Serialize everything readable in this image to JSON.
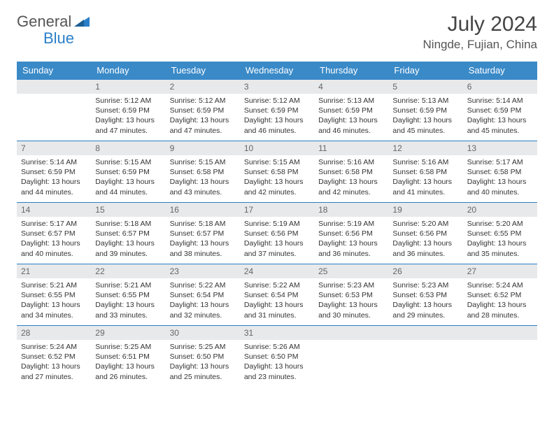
{
  "logo": {
    "text1": "General",
    "text2": "Blue"
  },
  "title": "July 2024",
  "location": "Ningde, Fujian, China",
  "colors": {
    "header_bg": "#3a8ac8",
    "border": "#2a7fc9",
    "daynum_bg": "#e8e9ea"
  },
  "dayNames": [
    "Sunday",
    "Monday",
    "Tuesday",
    "Wednesday",
    "Thursday",
    "Friday",
    "Saturday"
  ],
  "weeks": [
    [
      {
        "n": "",
        "sr": "",
        "ss": "",
        "dl": ""
      },
      {
        "n": "1",
        "sr": "Sunrise: 5:12 AM",
        "ss": "Sunset: 6:59 PM",
        "dl": "Daylight: 13 hours and 47 minutes."
      },
      {
        "n": "2",
        "sr": "Sunrise: 5:12 AM",
        "ss": "Sunset: 6:59 PM",
        "dl": "Daylight: 13 hours and 47 minutes."
      },
      {
        "n": "3",
        "sr": "Sunrise: 5:12 AM",
        "ss": "Sunset: 6:59 PM",
        "dl": "Daylight: 13 hours and 46 minutes."
      },
      {
        "n": "4",
        "sr": "Sunrise: 5:13 AM",
        "ss": "Sunset: 6:59 PM",
        "dl": "Daylight: 13 hours and 46 minutes."
      },
      {
        "n": "5",
        "sr": "Sunrise: 5:13 AM",
        "ss": "Sunset: 6:59 PM",
        "dl": "Daylight: 13 hours and 45 minutes."
      },
      {
        "n": "6",
        "sr": "Sunrise: 5:14 AM",
        "ss": "Sunset: 6:59 PM",
        "dl": "Daylight: 13 hours and 45 minutes."
      }
    ],
    [
      {
        "n": "7",
        "sr": "Sunrise: 5:14 AM",
        "ss": "Sunset: 6:59 PM",
        "dl": "Daylight: 13 hours and 44 minutes."
      },
      {
        "n": "8",
        "sr": "Sunrise: 5:15 AM",
        "ss": "Sunset: 6:59 PM",
        "dl": "Daylight: 13 hours and 44 minutes."
      },
      {
        "n": "9",
        "sr": "Sunrise: 5:15 AM",
        "ss": "Sunset: 6:58 PM",
        "dl": "Daylight: 13 hours and 43 minutes."
      },
      {
        "n": "10",
        "sr": "Sunrise: 5:15 AM",
        "ss": "Sunset: 6:58 PM",
        "dl": "Daylight: 13 hours and 42 minutes."
      },
      {
        "n": "11",
        "sr": "Sunrise: 5:16 AM",
        "ss": "Sunset: 6:58 PM",
        "dl": "Daylight: 13 hours and 42 minutes."
      },
      {
        "n": "12",
        "sr": "Sunrise: 5:16 AM",
        "ss": "Sunset: 6:58 PM",
        "dl": "Daylight: 13 hours and 41 minutes."
      },
      {
        "n": "13",
        "sr": "Sunrise: 5:17 AM",
        "ss": "Sunset: 6:58 PM",
        "dl": "Daylight: 13 hours and 40 minutes."
      }
    ],
    [
      {
        "n": "14",
        "sr": "Sunrise: 5:17 AM",
        "ss": "Sunset: 6:57 PM",
        "dl": "Daylight: 13 hours and 40 minutes."
      },
      {
        "n": "15",
        "sr": "Sunrise: 5:18 AM",
        "ss": "Sunset: 6:57 PM",
        "dl": "Daylight: 13 hours and 39 minutes."
      },
      {
        "n": "16",
        "sr": "Sunrise: 5:18 AM",
        "ss": "Sunset: 6:57 PM",
        "dl": "Daylight: 13 hours and 38 minutes."
      },
      {
        "n": "17",
        "sr": "Sunrise: 5:19 AM",
        "ss": "Sunset: 6:56 PM",
        "dl": "Daylight: 13 hours and 37 minutes."
      },
      {
        "n": "18",
        "sr": "Sunrise: 5:19 AM",
        "ss": "Sunset: 6:56 PM",
        "dl": "Daylight: 13 hours and 36 minutes."
      },
      {
        "n": "19",
        "sr": "Sunrise: 5:20 AM",
        "ss": "Sunset: 6:56 PM",
        "dl": "Daylight: 13 hours and 36 minutes."
      },
      {
        "n": "20",
        "sr": "Sunrise: 5:20 AM",
        "ss": "Sunset: 6:55 PM",
        "dl": "Daylight: 13 hours and 35 minutes."
      }
    ],
    [
      {
        "n": "21",
        "sr": "Sunrise: 5:21 AM",
        "ss": "Sunset: 6:55 PM",
        "dl": "Daylight: 13 hours and 34 minutes."
      },
      {
        "n": "22",
        "sr": "Sunrise: 5:21 AM",
        "ss": "Sunset: 6:55 PM",
        "dl": "Daylight: 13 hours and 33 minutes."
      },
      {
        "n": "23",
        "sr": "Sunrise: 5:22 AM",
        "ss": "Sunset: 6:54 PM",
        "dl": "Daylight: 13 hours and 32 minutes."
      },
      {
        "n": "24",
        "sr": "Sunrise: 5:22 AM",
        "ss": "Sunset: 6:54 PM",
        "dl": "Daylight: 13 hours and 31 minutes."
      },
      {
        "n": "25",
        "sr": "Sunrise: 5:23 AM",
        "ss": "Sunset: 6:53 PM",
        "dl": "Daylight: 13 hours and 30 minutes."
      },
      {
        "n": "26",
        "sr": "Sunrise: 5:23 AM",
        "ss": "Sunset: 6:53 PM",
        "dl": "Daylight: 13 hours and 29 minutes."
      },
      {
        "n": "27",
        "sr": "Sunrise: 5:24 AM",
        "ss": "Sunset: 6:52 PM",
        "dl": "Daylight: 13 hours and 28 minutes."
      }
    ],
    [
      {
        "n": "28",
        "sr": "Sunrise: 5:24 AM",
        "ss": "Sunset: 6:52 PM",
        "dl": "Daylight: 13 hours and 27 minutes."
      },
      {
        "n": "29",
        "sr": "Sunrise: 5:25 AM",
        "ss": "Sunset: 6:51 PM",
        "dl": "Daylight: 13 hours and 26 minutes."
      },
      {
        "n": "30",
        "sr": "Sunrise: 5:25 AM",
        "ss": "Sunset: 6:50 PM",
        "dl": "Daylight: 13 hours and 25 minutes."
      },
      {
        "n": "31",
        "sr": "Sunrise: 5:26 AM",
        "ss": "Sunset: 6:50 PM",
        "dl": "Daylight: 13 hours and 23 minutes."
      },
      {
        "n": "",
        "sr": "",
        "ss": "",
        "dl": ""
      },
      {
        "n": "",
        "sr": "",
        "ss": "",
        "dl": ""
      },
      {
        "n": "",
        "sr": "",
        "ss": "",
        "dl": ""
      }
    ]
  ]
}
